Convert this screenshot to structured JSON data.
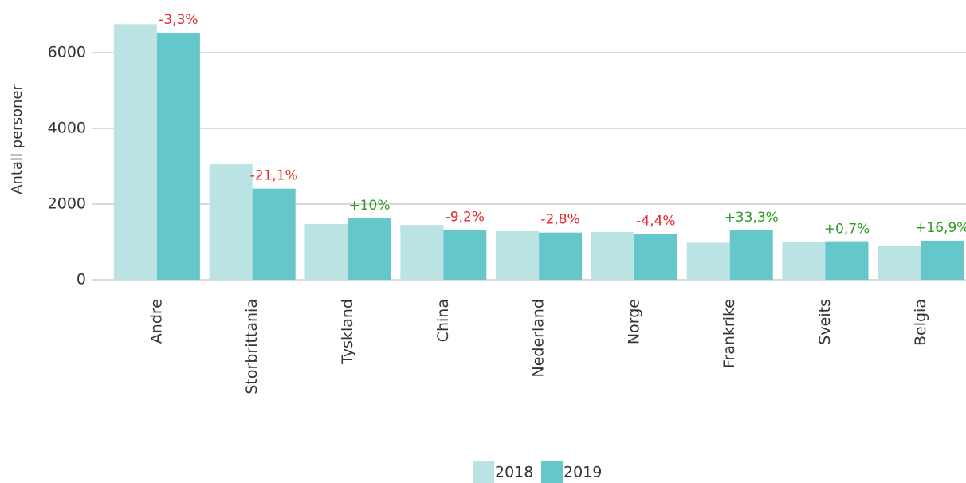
{
  "chart_data": {
    "type": "bar",
    "y_axis_label": "Antall personer",
    "categories": [
      "Andre",
      "Storbrittania",
      "Tyskland",
      "China",
      "Nederland",
      "Norge",
      "Frankrike",
      "Sveits",
      "Belgia"
    ],
    "series": [
      {
        "name": "2018",
        "color": "#bbe3e3",
        "values": [
          6750,
          3050,
          1474,
          1450,
          1285,
          1265,
          980,
          990,
          884
        ]
      },
      {
        "name": "2019",
        "color": "#66c7cb",
        "values": [
          6527,
          2406,
          1621,
          1317,
          1249,
          1209,
          1306,
          997,
          1033
        ]
      }
    ],
    "annotations": [
      "-3,3%",
      "-21,1%",
      "+10%",
      "-9,2%",
      "-2,8%",
      "-4,4%",
      "+33,3%",
      "+0,7%",
      "+16,9%"
    ],
    "annotation_colors": [
      "#e8262b",
      "#e8262b",
      "#2e9a23",
      "#e8262b",
      "#e8262b",
      "#e8262b",
      "#2e9a23",
      "#2e9a23",
      "#2e9a23"
    ],
    "ylim": [
      0,
      7000
    ],
    "yticks": [
      0,
      2000,
      4000,
      6000
    ],
    "grid": true,
    "legend": "bottom"
  }
}
